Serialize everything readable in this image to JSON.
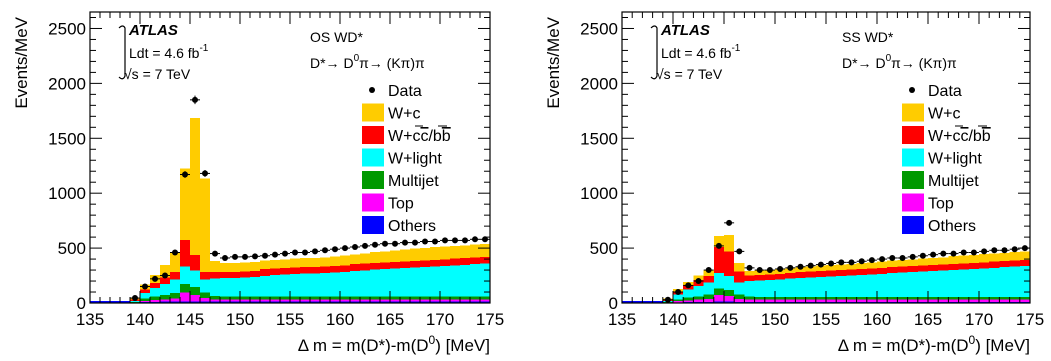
{
  "figure": {
    "panels": [
      "OS",
      "SS"
    ]
  },
  "colors": {
    "W+c": "#ffcc00",
    "W+cc/bb": "#ff0000",
    "W+light": "#00ffff",
    "Multijet": "#009900",
    "Top": "#ff00ff",
    "Others": "#0000ff",
    "Data": "#000000"
  },
  "chart_data": [
    {
      "type": "bar",
      "stacked": true,
      "label": "OS WD*",
      "decay": "D*→ D0π→ (Kπ)π",
      "atlas": "ATLAS",
      "lumi": "Ldt = 4.6 fb-1",
      "energy": "√s = 7 TeV",
      "xlabel": "Δ m = m(D*)-m(D0) [MeV]",
      "ylabel": "Events/MeV",
      "xlim": [
        135,
        175
      ],
      "ylim": [
        0,
        2650
      ],
      "xticks": [
        135,
        140,
        145,
        150,
        155,
        160,
        165,
        170,
        175
      ],
      "yticks": [
        0,
        500,
        1000,
        1500,
        2000,
        2500
      ],
      "legend": [
        "Data",
        "W+c",
        "W+cc/bb",
        "W+light",
        "Multijet",
        "Top",
        "Others"
      ],
      "legend_position": "top-right",
      "bin_width": 1,
      "bin_edges_start": 139,
      "series": [
        {
          "name": "Others",
          "values": [
            2,
            8,
            10,
            12,
            13,
            14,
            15,
            14,
            13,
            13,
            13,
            13,
            13,
            13,
            13,
            13,
            13,
            13,
            13,
            13,
            13,
            13,
            13,
            13,
            13,
            13,
            13,
            13,
            13,
            13,
            13,
            13,
            13,
            13,
            13,
            13
          ]
        },
        {
          "name": "Top",
          "values": [
            3,
            12,
            18,
            22,
            30,
            80,
            60,
            30,
            20,
            20,
            20,
            20,
            20,
            20,
            20,
            20,
            20,
            20,
            20,
            20,
            20,
            20,
            20,
            20,
            20,
            20,
            20,
            20,
            20,
            20,
            20,
            20,
            20,
            20,
            20,
            20
          ]
        },
        {
          "name": "Multijet",
          "values": [
            5,
            20,
            30,
            40,
            50,
            80,
            70,
            50,
            30,
            25,
            25,
            25,
            25,
            25,
            25,
            25,
            25,
            25,
            25,
            25,
            25,
            25,
            25,
            25,
            25,
            25,
            25,
            25,
            25,
            25,
            25,
            25,
            25,
            25,
            25,
            25
          ]
        },
        {
          "name": "W+light",
          "values": [
            10,
            50,
            80,
            100,
            120,
            160,
            150,
            120,
            160,
            170,
            170,
            175,
            180,
            190,
            195,
            200,
            205,
            210,
            210,
            215,
            220,
            225,
            235,
            240,
            245,
            250,
            255,
            260,
            265,
            270,
            275,
            280,
            285,
            290,
            295,
            300
          ]
        },
        {
          "name": "W+cc/bb",
          "values": [
            10,
            35,
            45,
            60,
            70,
            240,
            140,
            70,
            60,
            55,
            55,
            55,
            55,
            60,
            60,
            60,
            60,
            60,
            60,
            60,
            60,
            60,
            60,
            60,
            60,
            60,
            60,
            60,
            60,
            60,
            60,
            60,
            60,
            60,
            60,
            60
          ]
        },
        {
          "name": "W+c",
          "values": [
            20,
            45,
            70,
            110,
            180,
            650,
            1250,
            850,
            100,
            80,
            80,
            80,
            80,
            80,
            80,
            80,
            80,
            80,
            80,
            80,
            85,
            90,
            90,
            95,
            100,
            100,
            105,
            110,
            115,
            115,
            115,
            115,
            115,
            115,
            120,
            120
          ]
        }
      ],
      "data": {
        "name": "Data",
        "values": [
          45,
          150,
          220,
          250,
          460,
          1170,
          1850,
          1180,
          450,
          410,
          420,
          420,
          425,
          430,
          440,
          450,
          460,
          460,
          470,
          480,
          490,
          500,
          510,
          520,
          530,
          540,
          540,
          550,
          550,
          560,
          560,
          570,
          570,
          570,
          580,
          580
        ]
      }
    },
    {
      "type": "bar",
      "stacked": true,
      "label": "SS WD*",
      "decay": "D*→ D0π→ (Kπ)π",
      "atlas": "ATLAS",
      "lumi": "Ldt = 4.6 fb-1",
      "energy": "√s = 7 TeV",
      "xlabel": "Δ m = m(D*)-m(D0) [MeV]",
      "ylabel": "Events/MeV",
      "xlim": [
        135,
        175
      ],
      "ylim": [
        0,
        2650
      ],
      "xticks": [
        135,
        140,
        145,
        150,
        155,
        160,
        165,
        170,
        175
      ],
      "yticks": [
        0,
        500,
        1000,
        1500,
        2000,
        2500
      ],
      "legend": [
        "Data",
        "W+c",
        "W+cc/bb",
        "W+light",
        "Multijet",
        "Top",
        "Others"
      ],
      "legend_position": "top-right",
      "bin_width": 1,
      "bin_edges_start": 139,
      "series": [
        {
          "name": "Others",
          "values": [
            2,
            6,
            8,
            10,
            11,
            12,
            12,
            11,
            11,
            11,
            11,
            11,
            11,
            11,
            11,
            11,
            11,
            11,
            11,
            11,
            11,
            11,
            11,
            11,
            11,
            11,
            11,
            11,
            11,
            11,
            11,
            11,
            11,
            11,
            11,
            11
          ]
        },
        {
          "name": "Top",
          "values": [
            3,
            10,
            15,
            20,
            25,
            60,
            50,
            25,
            20,
            20,
            20,
            20,
            20,
            20,
            20,
            20,
            20,
            20,
            20,
            20,
            20,
            20,
            20,
            20,
            20,
            20,
            20,
            20,
            20,
            20,
            20,
            20,
            20,
            20,
            20,
            20
          ]
        },
        {
          "name": "Multijet",
          "values": [
            5,
            15,
            25,
            30,
            40,
            60,
            55,
            40,
            30,
            25,
            25,
            25,
            25,
            25,
            25,
            25,
            25,
            25,
            25,
            25,
            25,
            25,
            25,
            25,
            25,
            25,
            25,
            25,
            25,
            25,
            25,
            25,
            25,
            25,
            25,
            25
          ]
        },
        {
          "name": "W+light",
          "values": [
            10,
            45,
            75,
            95,
            110,
            140,
            130,
            110,
            140,
            150,
            155,
            160,
            165,
            170,
            175,
            180,
            185,
            190,
            195,
            200,
            205,
            210,
            215,
            220,
            225,
            230,
            235,
            240,
            245,
            250,
            255,
            260,
            265,
            270,
            275,
            280
          ]
        },
        {
          "name": "W+cc/bb",
          "values": [
            10,
            30,
            40,
            55,
            60,
            240,
            220,
            100,
            50,
            50,
            50,
            50,
            50,
            55,
            55,
            55,
            55,
            55,
            55,
            55,
            55,
            55,
            55,
            55,
            55,
            55,
            55,
            55,
            55,
            55,
            55,
            55,
            55,
            55,
            55,
            55
          ]
        },
        {
          "name": "W+c",
          "values": [
            10,
            20,
            30,
            40,
            50,
            100,
            150,
            80,
            40,
            40,
            40,
            40,
            45,
            45,
            45,
            50,
            50,
            50,
            50,
            55,
            55,
            55,
            60,
            60,
            60,
            65,
            65,
            65,
            70,
            70,
            70,
            75,
            75,
            75,
            80,
            80
          ]
        }
      ],
      "data": {
        "name": "Data",
        "values": [
          30,
          100,
          160,
          200,
          300,
          520,
          730,
          470,
          320,
          300,
          300,
          310,
          320,
          330,
          340,
          350,
          360,
          370,
          370,
          380,
          390,
          400,
          410,
          410,
          420,
          430,
          440,
          450,
          450,
          460,
          460,
          470,
          480,
          480,
          490,
          500
        ]
      }
    }
  ]
}
